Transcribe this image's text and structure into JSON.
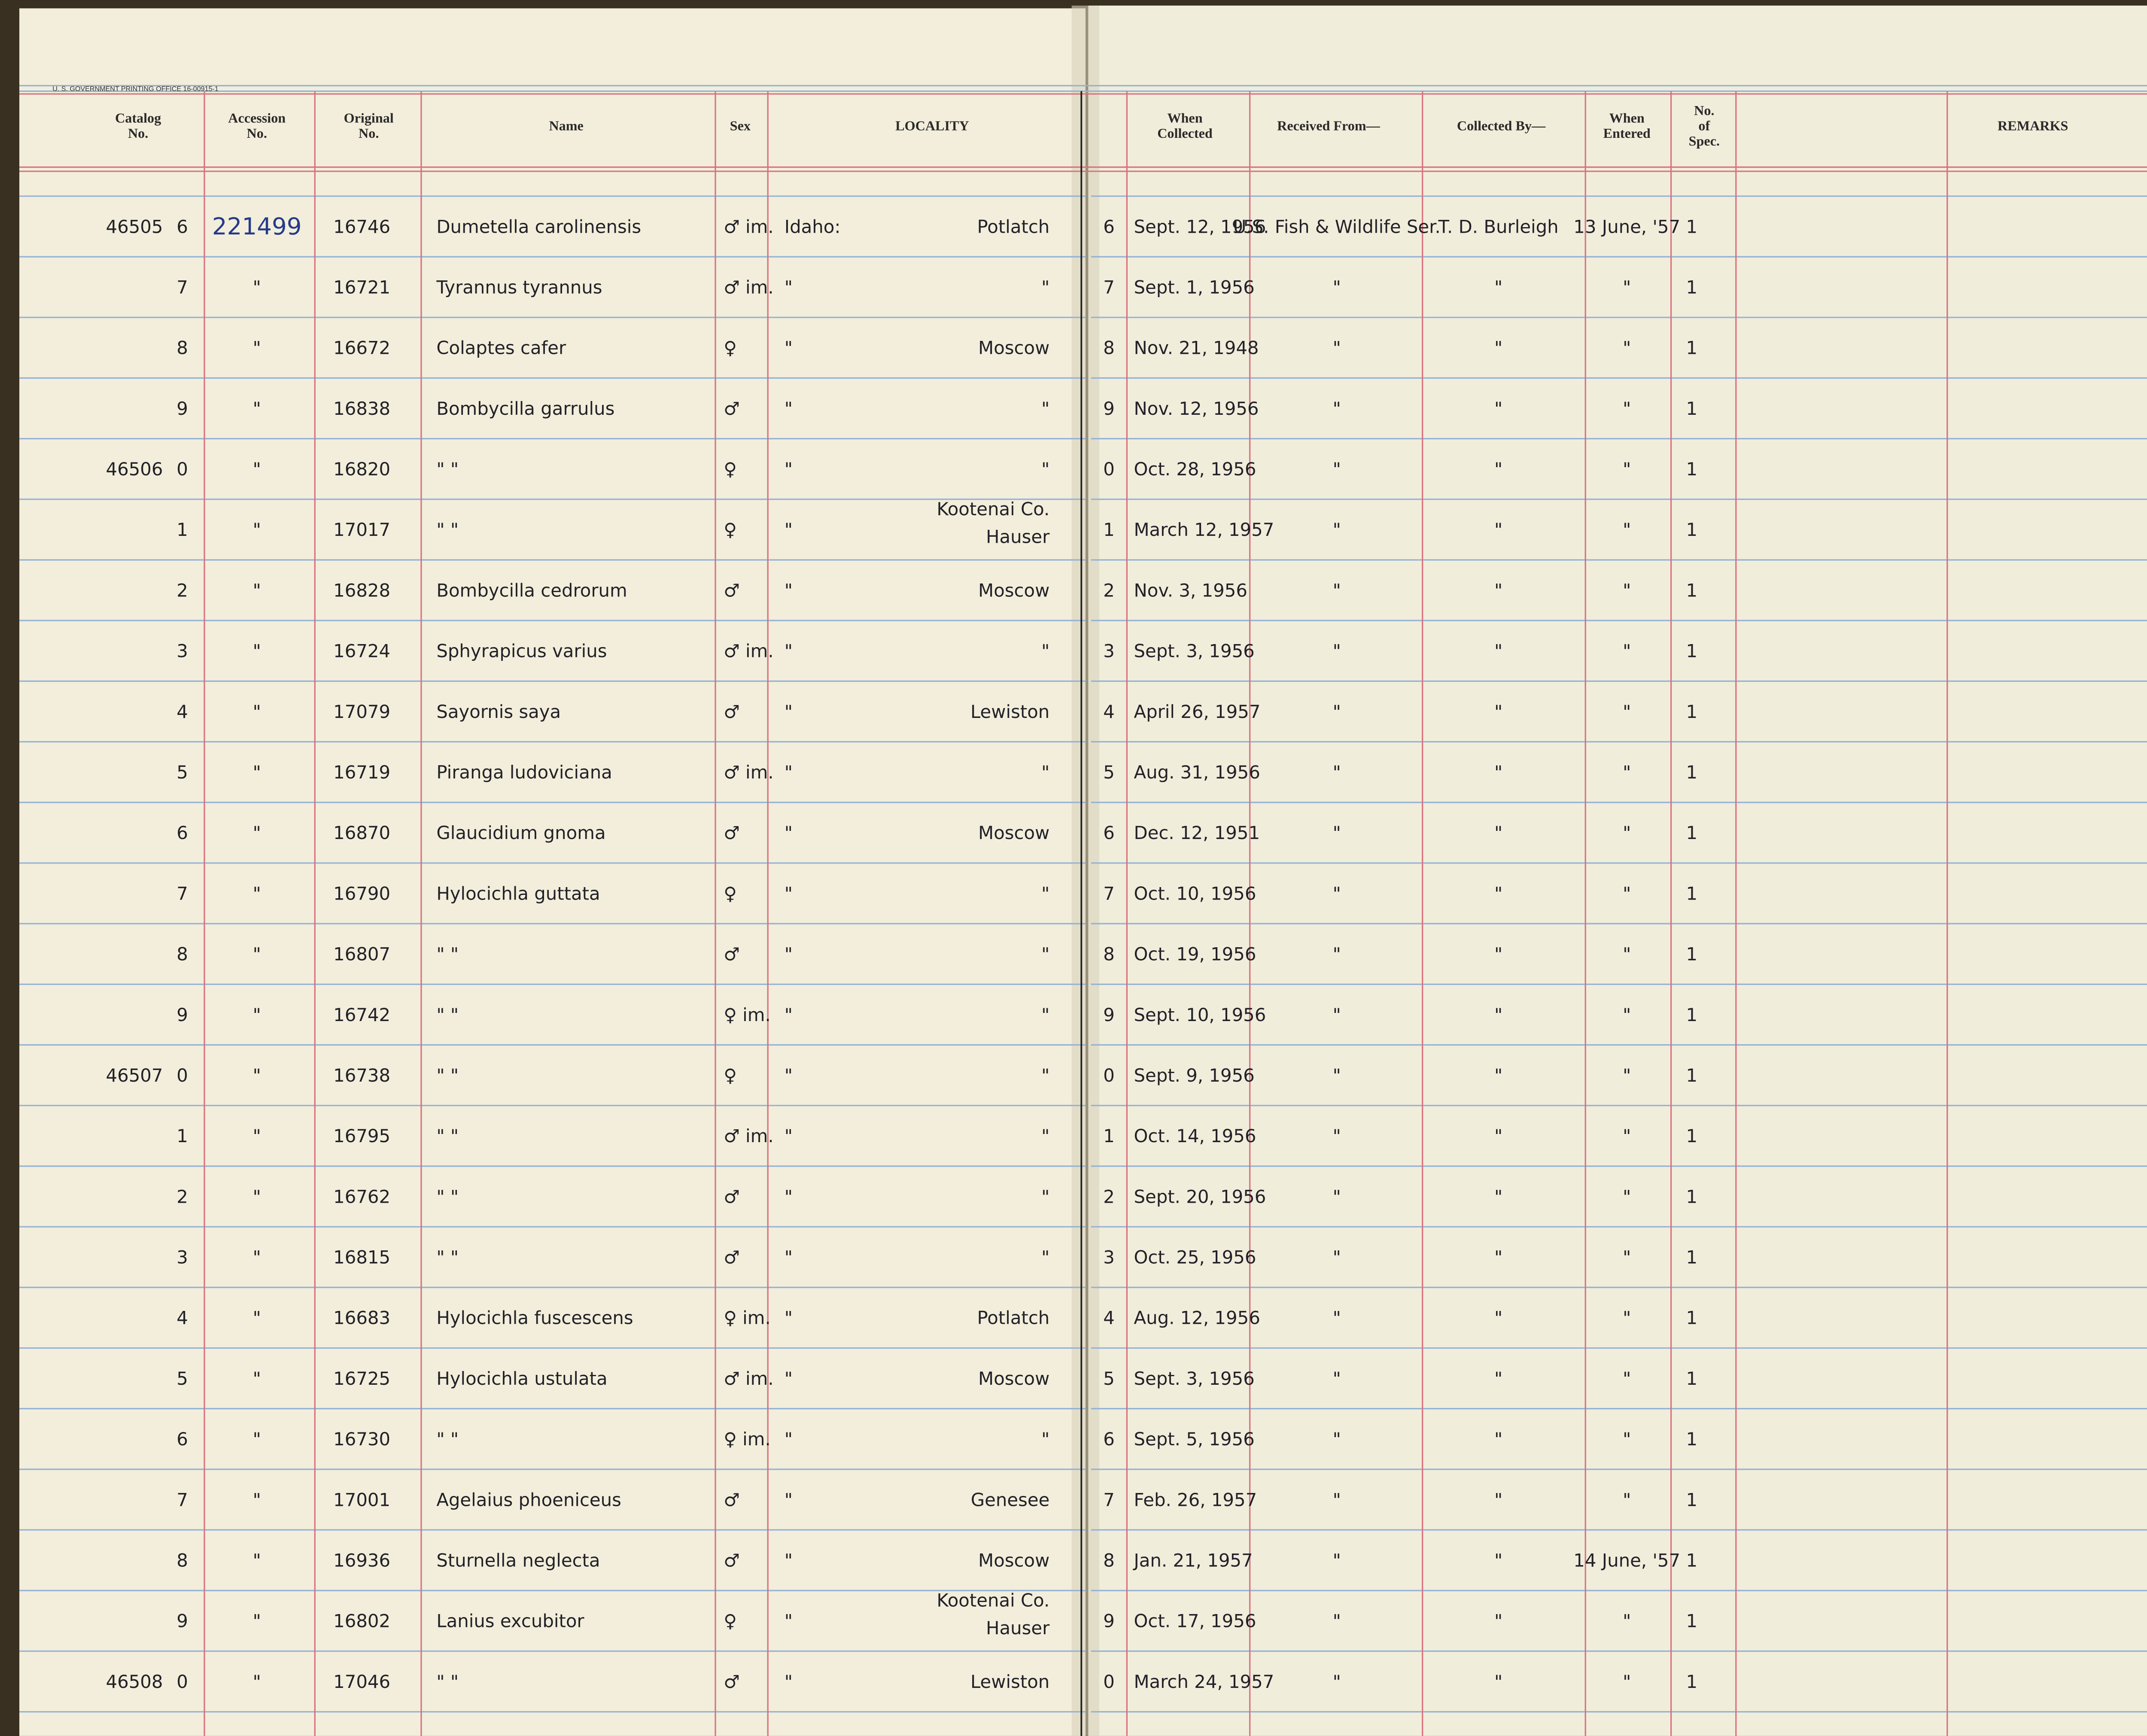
{
  "header": {
    "print_line": "U. S. GOVERNMENT PRINTING OFFICE   16-00915-1"
  },
  "columns": [
    [
      "Catalog",
      "No."
    ],
    [
      "Accession",
      "No."
    ],
    [
      "Original",
      "No."
    ],
    [
      "Name"
    ],
    [
      "Sex"
    ],
    [
      "LOCALITY"
    ],
    [
      "When",
      "Collected"
    ],
    [
      "Received From—"
    ],
    [
      "Collected By—"
    ],
    [
      "When",
      "Entered"
    ],
    [
      "No.",
      "of",
      "Spec."
    ],
    [
      "REMARKS"
    ]
  ],
  "rows": [
    {
      "cat": "46505",
      "d": "6",
      "acc": "221499",
      "orig": "16746",
      "name": "Dumetella carolinensis",
      "sex": "♂ im.",
      "st": "Idaho:",
      "loc": [
        "Potlatch"
      ],
      "d2": "6",
      "date": "Sept. 12, 1956",
      "rec": "U.S. Fish & Wildlife Ser.",
      "col": "T. D. Burleigh",
      "ent": "13 June, '57",
      "n": "1"
    },
    {
      "d": "7",
      "acc": "\"",
      "orig": "16721",
      "name": "Tyrannus tyrannus",
      "sex": "♂ im.",
      "st": "\"",
      "loc": [
        "\""
      ],
      "d2": "7",
      "date": "Sept. 1, 1956",
      "rec": "\"",
      "col": "\"",
      "ent": "\"",
      "n": "1"
    },
    {
      "d": "8",
      "acc": "\"",
      "orig": "16672",
      "name": "Colaptes cafer",
      "sex": "♀",
      "st": "\"",
      "loc": [
        "Moscow"
      ],
      "d2": "8",
      "date": "Nov. 21, 1948",
      "rec": "\"",
      "col": "\"",
      "ent": "\"",
      "n": "1"
    },
    {
      "d": "9",
      "acc": "\"",
      "orig": "16838",
      "name": "Bombycilla garrulus",
      "sex": "♂",
      "st": "\"",
      "loc": [
        "\""
      ],
      "d2": "9",
      "date": "Nov. 12, 1956",
      "rec": "\"",
      "col": "\"",
      "ent": "\"",
      "n": "1"
    },
    {
      "cat": "46506",
      "d": "0",
      "acc": "\"",
      "orig": "16820",
      "name": "\"      \"",
      "sex": "♀",
      "st": "\"",
      "loc": [
        "\""
      ],
      "d2": "0",
      "date": "Oct. 28, 1956",
      "rec": "\"",
      "col": "\"",
      "ent": "\"",
      "n": "1"
    },
    {
      "d": "1",
      "acc": "\"",
      "orig": "17017",
      "name": "\"      \"",
      "sex": "♀",
      "st": "\"",
      "loc": [
        "Kootenai Co.",
        "Hauser"
      ],
      "d2": "1",
      "date": "March 12, 1957",
      "rec": "\"",
      "col": "\"",
      "ent": "\"",
      "n": "1"
    },
    {
      "d": "2",
      "acc": "\"",
      "orig": "16828",
      "name": "Bombycilla cedrorum",
      "sex": "♂",
      "st": "\"",
      "loc": [
        "Moscow"
      ],
      "d2": "2",
      "date": "Nov. 3, 1956",
      "rec": "\"",
      "col": "\"",
      "ent": "\"",
      "n": "1"
    },
    {
      "d": "3",
      "acc": "\"",
      "orig": "16724",
      "name": "Sphyrapicus varius",
      "sex": "♂ im.",
      "st": "\"",
      "loc": [
        "\""
      ],
      "d2": "3",
      "date": "Sept. 3, 1956",
      "rec": "\"",
      "col": "\"",
      "ent": "\"",
      "n": "1"
    },
    {
      "d": "4",
      "acc": "\"",
      "orig": "17079",
      "name": "Sayornis saya",
      "sex": "♂",
      "st": "\"",
      "loc": [
        "Lewiston"
      ],
      "d2": "4",
      "date": "April 26, 1957",
      "rec": "\"",
      "col": "\"",
      "ent": "\"",
      "n": "1"
    },
    {
      "d": "5",
      "acc": "\"",
      "orig": "16719",
      "name": "Piranga ludoviciana",
      "sex": "♂ im.",
      "st": "\"",
      "loc": [
        "\""
      ],
      "d2": "5",
      "date": "Aug. 31, 1956",
      "rec": "\"",
      "col": "\"",
      "ent": "\"",
      "n": "1"
    },
    {
      "d": "6",
      "acc": "\"",
      "orig": "16870",
      "name": "Glaucidium gnoma",
      "sex": "♂",
      "st": "\"",
      "loc": [
        "Moscow"
      ],
      "d2": "6",
      "date": "Dec. 12, 1951",
      "rec": "\"",
      "col": "\"",
      "ent": "\"",
      "n": "1"
    },
    {
      "d": "7",
      "acc": "\"",
      "orig": "16790",
      "name": "Hylocichla guttata",
      "sex": "♀",
      "st": "\"",
      "loc": [
        "\""
      ],
      "d2": "7",
      "date": "Oct. 10, 1956",
      "rec": "\"",
      "col": "\"",
      "ent": "\"",
      "n": "1"
    },
    {
      "d": "8",
      "acc": "\"",
      "orig": "16807",
      "name": "\"      \"",
      "sex": "♂",
      "st": "\"",
      "loc": [
        "\""
      ],
      "d2": "8",
      "date": "Oct. 19, 1956",
      "rec": "\"",
      "col": "\"",
      "ent": "\"",
      "n": "1"
    },
    {
      "d": "9",
      "acc": "\"",
      "orig": "16742",
      "name": "\"      \"",
      "sex": "♀ im.",
      "st": "\"",
      "loc": [
        "\""
      ],
      "d2": "9",
      "date": "Sept. 10, 1956",
      "rec": "\"",
      "col": "\"",
      "ent": "\"",
      "n": "1"
    },
    {
      "cat": "46507",
      "d": "0",
      "acc": "\"",
      "orig": "16738",
      "name": "\"      \"",
      "sex": "♀",
      "st": "\"",
      "loc": [
        "\""
      ],
      "d2": "0",
      "date": "Sept. 9, 1956",
      "rec": "\"",
      "col": "\"",
      "ent": "\"",
      "n": "1"
    },
    {
      "d": "1",
      "acc": "\"",
      "orig": "16795",
      "name": "\"      \"",
      "sex": "♂ im.",
      "st": "\"",
      "loc": [
        "\""
      ],
      "d2": "1",
      "date": "Oct. 14, 1956",
      "rec": "\"",
      "col": "\"",
      "ent": "\"",
      "n": "1"
    },
    {
      "d": "2",
      "acc": "\"",
      "orig": "16762",
      "name": "\"      \"",
      "sex": "♂",
      "st": "\"",
      "loc": [
        "\""
      ],
      "d2": "2",
      "date": "Sept. 20, 1956",
      "rec": "\"",
      "col": "\"",
      "ent": "\"",
      "n": "1"
    },
    {
      "d": "3",
      "acc": "\"",
      "orig": "16815",
      "name": "\"      \"",
      "sex": "♂",
      "st": "\"",
      "loc": [
        "\""
      ],
      "d2": "3",
      "date": "Oct. 25, 1956",
      "rec": "\"",
      "col": "\"",
      "ent": "\"",
      "n": "1"
    },
    {
      "d": "4",
      "acc": "\"",
      "orig": "16683",
      "name": "Hylocichla fuscescens",
      "sex": "♀ im.",
      "st": "\"",
      "loc": [
        "Potlatch"
      ],
      "d2": "4",
      "date": "Aug. 12, 1956",
      "rec": "\"",
      "col": "\"",
      "ent": "\"",
      "n": "1"
    },
    {
      "d": "5",
      "acc": "\"",
      "orig": "16725",
      "name": "Hylocichla ustulata",
      "sex": "♂ im.",
      "st": "\"",
      "loc": [
        "Moscow"
      ],
      "d2": "5",
      "date": "Sept. 3, 1956",
      "rec": "\"",
      "col": "\"",
      "ent": "\"",
      "n": "1"
    },
    {
      "d": "6",
      "acc": "\"",
      "orig": "16730",
      "name": "\"      \"",
      "sex": "♀ im.",
      "st": "\"",
      "loc": [
        "\""
      ],
      "d2": "6",
      "date": "Sept. 5, 1956",
      "rec": "\"",
      "col": "\"",
      "ent": "\"",
      "n": "1"
    },
    {
      "d": "7",
      "acc": "\"",
      "orig": "17001",
      "name": "Agelaius phoeniceus",
      "sex": "♂",
      "st": "\"",
      "loc": [
        "Genesee"
      ],
      "d2": "7",
      "date": "Feb. 26, 1957",
      "rec": "\"",
      "col": "\"",
      "ent": "\"",
      "n": "1"
    },
    {
      "d": "8",
      "acc": "\"",
      "orig": "16936",
      "name": "Sturnella neglecta",
      "sex": "♂",
      "st": "\"",
      "loc": [
        "Moscow"
      ],
      "d2": "8",
      "date": "Jan. 21, 1957",
      "rec": "\"",
      "col": "\"",
      "ent": "14 June, '57",
      "n": "1"
    },
    {
      "d": "9",
      "acc": "\"",
      "orig": "16802",
      "name": "Lanius excubitor",
      "sex": "♀",
      "st": "\"",
      "loc": [
        "Kootenai Co.",
        "Hauser"
      ],
      "d2": "9",
      "date": "Oct. 17, 1956",
      "rec": "\"",
      "col": "\"",
      "ent": "\"",
      "n": "1"
    },
    {
      "cat": "46508",
      "d": "0",
      "acc": "\"",
      "orig": "17046",
      "name": "\"      \"",
      "sex": "♂",
      "st": "\"",
      "loc": [
        "Lewiston"
      ],
      "d2": "0",
      "date": "March 24, 1957",
      "rec": "\"",
      "col": "\"",
      "ent": "\"",
      "n": "1"
    }
  ]
}
